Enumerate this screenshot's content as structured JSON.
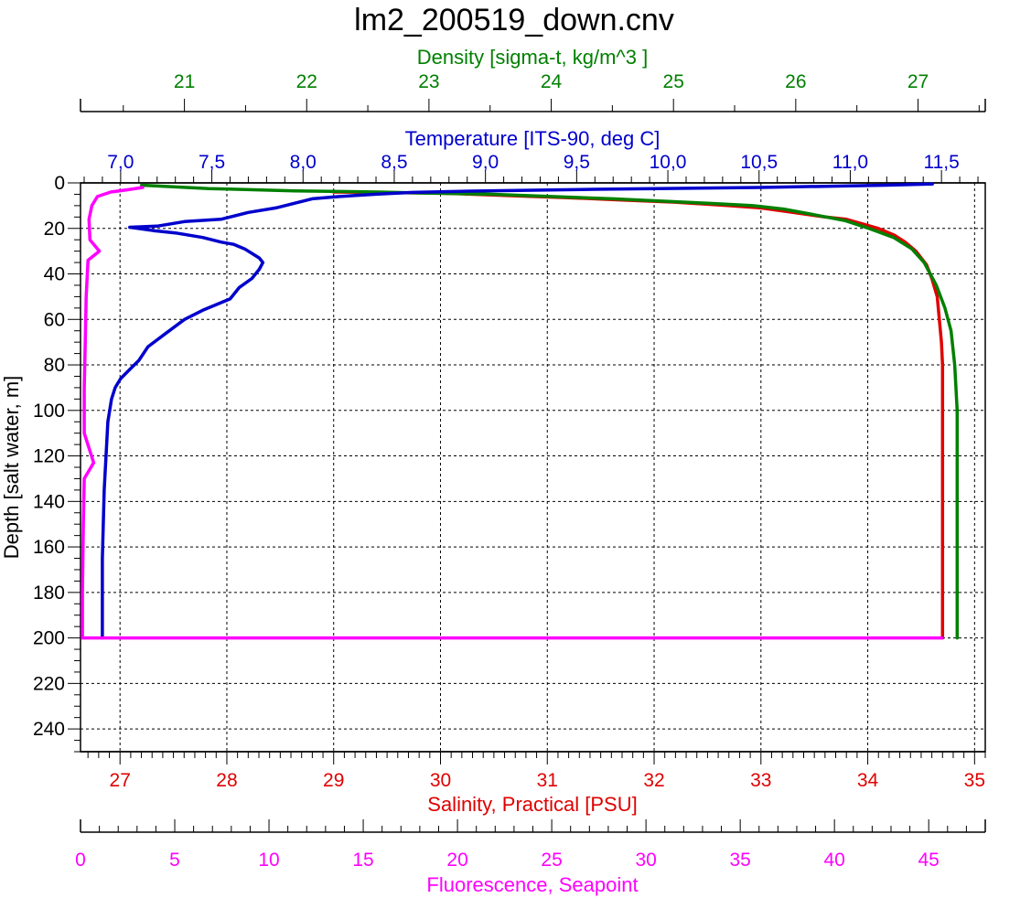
{
  "chart_data": {
    "type": "line",
    "title": "lm2_200519_down.cnv",
    "colors": {
      "depth_axis": "#000000",
      "density": "#008000",
      "temperature": "#0000cc",
      "salinity": "#e00000",
      "fluorescence": "#ff00ff",
      "grid": "#000000"
    },
    "grid": true,
    "y_axis": {
      "label": "Depth [salt water, m]",
      "range": [
        0,
        250
      ],
      "reversed": true,
      "ticks": [
        0,
        20,
        40,
        60,
        80,
        100,
        120,
        140,
        160,
        180,
        200,
        220,
        240
      ],
      "tick_labels": [
        "0",
        "20",
        "40",
        "60",
        "80",
        "100",
        "120",
        "140",
        "160",
        "180",
        "200",
        "220",
        "240"
      ]
    },
    "x_axes": {
      "density": {
        "label": "Density [sigma-t, kg/m^3 ]",
        "range": [
          20.15,
          27.55
        ],
        "ticks": [
          21,
          22,
          23,
          24,
          25,
          26,
          27
        ],
        "tick_labels": [
          "21",
          "22",
          "23",
          "24",
          "25",
          "26",
          "27"
        ]
      },
      "temperature": {
        "label": "Temperature [ITS-90, deg C]",
        "range": [
          6.78,
          11.74
        ],
        "ticks": [
          7.0,
          7.5,
          8.0,
          8.5,
          9.0,
          9.5,
          10.0,
          10.5,
          11.0,
          11.5
        ],
        "tick_labels": [
          "7,0",
          "7,5",
          "8,0",
          "8,5",
          "9,0",
          "9,5",
          "10,0",
          "10,5",
          "11,0",
          "11,5"
        ]
      },
      "salinity": {
        "label": "Salinity, Practical [PSU]",
        "range": [
          26.63,
          35.1
        ],
        "ticks": [
          27,
          28,
          29,
          30,
          31,
          32,
          33,
          34,
          35
        ],
        "tick_labels": [
          "27",
          "28",
          "29",
          "30",
          "31",
          "32",
          "33",
          "34",
          "35"
        ]
      },
      "fluorescence": {
        "label": "Fluorescence, Seapoint",
        "range": [
          0,
          48
        ],
        "ticks": [
          0,
          5,
          10,
          15,
          20,
          25,
          30,
          35,
          40,
          45
        ],
        "tick_labels": [
          "0",
          "5",
          "10",
          "15",
          "20",
          "25",
          "30",
          "35",
          "40",
          "45"
        ]
      }
    },
    "series": [
      {
        "name": "Temperature [ITS-90, deg C]",
        "axis": "temperature",
        "x": [
          11.45,
          11.2,
          10.5,
          9.6,
          9.0,
          8.6,
          8.4,
          8.2,
          8.05,
          7.95,
          7.85,
          7.7,
          7.55,
          7.35,
          7.2,
          7.05,
          7.18,
          7.3,
          7.45,
          7.55,
          7.62,
          7.68,
          7.72,
          7.76,
          7.78,
          7.76,
          7.72,
          7.65,
          7.6,
          7.45,
          7.35,
          7.25,
          7.15,
          7.1,
          7.05,
          7.0,
          6.97,
          6.95,
          6.93,
          6.92,
          6.91,
          6.9,
          6.9
        ],
        "y": [
          0.5,
          1,
          2,
          2.8,
          3.5,
          4.2,
          5,
          6,
          7,
          9,
          11,
          13,
          16,
          17,
          19,
          19.5,
          21,
          22,
          24,
          26,
          27,
          29,
          31,
          33,
          35,
          38,
          42,
          46,
          51,
          56,
          60,
          66,
          72,
          78,
          82,
          86,
          90,
          95,
          105,
          120,
          135,
          165,
          200
        ]
      },
      {
        "name": "Salinity, Practical [PSU]",
        "axis": "salinity",
        "x": [
          29.0,
          30.0,
          30.6,
          31.2,
          31.7,
          32.2,
          32.7,
          33.0,
          33.3,
          33.6,
          33.8,
          33.95,
          34.1,
          34.25,
          34.35,
          34.45,
          34.55,
          34.6,
          34.65,
          34.67,
          34.69,
          34.7,
          34.7,
          34.7,
          34.7,
          34.7
        ],
        "y": [
          4,
          4.5,
          5.5,
          6.5,
          7.5,
          8.5,
          10,
          11,
          13,
          15,
          16,
          18,
          20,
          23,
          26,
          30,
          36,
          42,
          50,
          60,
          70,
          80,
          100,
          130,
          170,
          200
        ]
      },
      {
        "name": "Density [sigma-t, kg/m^3 ]",
        "axis": "density",
        "x": [
          20.65,
          21.2,
          21.9,
          22.6,
          23.0,
          23.5,
          24.0,
          24.5,
          24.9,
          25.3,
          25.65,
          25.9,
          26.15,
          26.4,
          26.6,
          26.8,
          26.95,
          27.05,
          27.15,
          27.22,
          27.27,
          27.3,
          27.32,
          27.32,
          27.32,
          27.32
        ],
        "y": [
          1,
          2.5,
          3.5,
          4,
          4.5,
          5,
          6,
          7,
          8,
          9,
          10,
          11.5,
          14,
          16.5,
          20,
          24,
          29,
          35,
          45,
          55,
          65,
          80,
          100,
          130,
          170,
          200
        ]
      },
      {
        "name": "Fluorescence, Seapoint",
        "axis": "fluorescence",
        "x": [
          3.3,
          2.5,
          1.6,
          0.9,
          0.6,
          0.45,
          0.5,
          1.0,
          0.4,
          0.3,
          0.25,
          0.2,
          0.2,
          0.7,
          0.2,
          0.15,
          0.1,
          0.1,
          45.7
        ],
        "y": [
          2,
          3,
          4,
          6,
          10,
          16,
          25,
          30,
          34,
          50,
          70,
          90,
          110,
          123,
          130,
          150,
          180,
          200,
          200
        ]
      }
    ]
  }
}
